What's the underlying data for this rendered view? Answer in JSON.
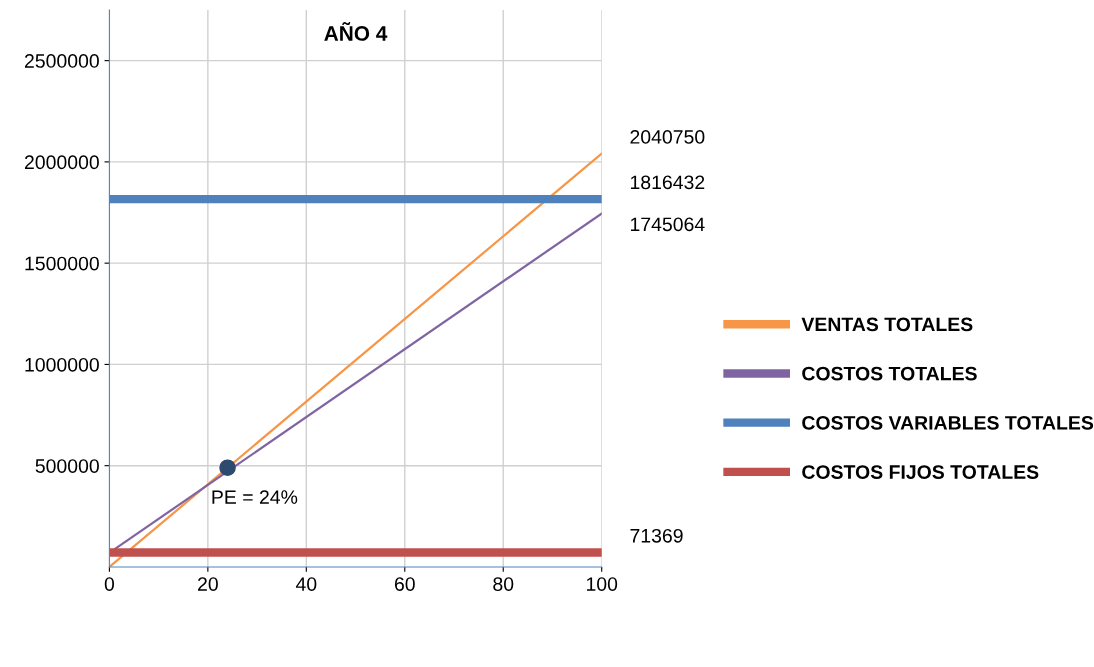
{
  "chart_data": {
    "type": "line",
    "title": "AÑO 4",
    "series": [
      {
        "name": "VENTAS TOTALES",
        "color": "#f79646",
        "x": [
          0,
          100
        ],
        "values": [
          0,
          2040750
        ],
        "value_labels": [
          null,
          "2040750"
        ]
      },
      {
        "name": "COSTOS TOTALES",
        "color": "#8064a2",
        "x": [
          0,
          100
        ],
        "values": [
          70000,
          1745064
        ],
        "value_labels": [
          null,
          "1745064"
        ]
      },
      {
        "name": "COSTOS VARIABLES TOTALES",
        "color": "#4f81bd",
        "x": [
          0,
          100
        ],
        "values": [
          1816432,
          1816432
        ],
        "value_labels": [
          null,
          "1816432"
        ]
      },
      {
        "name": "COSTOS FIJOS TOTALES",
        "color": "#c0504d",
        "x": [
          0,
          100
        ],
        "values": [
          71369,
          71369
        ],
        "value_labels": [
          null,
          "71369"
        ]
      },
      {
        "type": "scatter",
        "color": "#2e4a6e",
        "x": [
          24
        ],
        "values": [
          490000
        ],
        "marker": "circle"
      }
    ],
    "annotations": [
      {
        "text": "PE = 24%",
        "x": 24,
        "y": 490000
      }
    ],
    "xlim": [
      0,
      100
    ],
    "xticks": [
      0,
      20,
      40,
      60,
      80,
      100
    ],
    "ylim": [
      0,
      2750000
    ],
    "yticks": [
      500000,
      1000000,
      1500000,
      2000000,
      2500000
    ],
    "grid": true,
    "legend": "right"
  }
}
